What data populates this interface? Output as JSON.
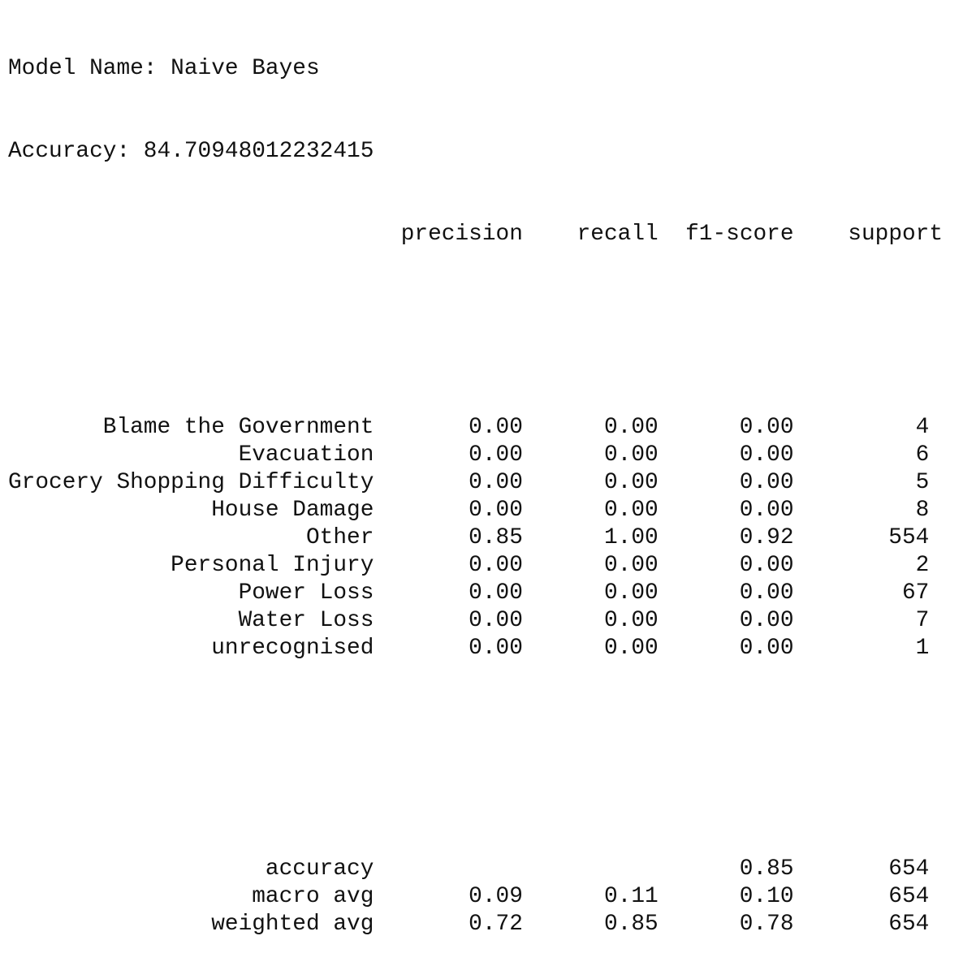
{
  "header": {
    "model_line": "Model Name: Naive Bayes",
    "accuracy_line": "Accuracy: 84.70948012232415"
  },
  "report": {
    "columns": [
      "precision",
      "recall",
      "f1-score",
      "support"
    ],
    "class_rows": [
      {
        "label": "Blame the Government",
        "precision": "0.00",
        "recall": "0.00",
        "f1": "0.00",
        "support": "4"
      },
      {
        "label": "Evacuation",
        "precision": "0.00",
        "recall": "0.00",
        "f1": "0.00",
        "support": "6"
      },
      {
        "label": "Grocery Shopping Difficulty",
        "precision": "0.00",
        "recall": "0.00",
        "f1": "0.00",
        "support": "5"
      },
      {
        "label": "House Damage",
        "precision": "0.00",
        "recall": "0.00",
        "f1": "0.00",
        "support": "8"
      },
      {
        "label": "Other",
        "precision": "0.85",
        "recall": "1.00",
        "f1": "0.92",
        "support": "554"
      },
      {
        "label": "Personal Injury",
        "precision": "0.00",
        "recall": "0.00",
        "f1": "0.00",
        "support": "2"
      },
      {
        "label": "Power Loss",
        "precision": "0.00",
        "recall": "0.00",
        "f1": "0.00",
        "support": "67"
      },
      {
        "label": "Water Loss",
        "precision": "0.00",
        "recall": "0.00",
        "f1": "0.00",
        "support": "7"
      },
      {
        "label": "unrecognised",
        "precision": "0.00",
        "recall": "0.00",
        "f1": "0.00",
        "support": "1"
      }
    ],
    "summary_rows": [
      {
        "label": "accuracy",
        "precision": "",
        "recall": "",
        "f1": "0.85",
        "support": "654"
      },
      {
        "label": "macro avg",
        "precision": "0.09",
        "recall": "0.11",
        "f1": "0.10",
        "support": "654"
      },
      {
        "label": "weighted avg",
        "precision": "0.72",
        "recall": "0.85",
        "f1": "0.78",
        "support": "654"
      }
    ]
  }
}
